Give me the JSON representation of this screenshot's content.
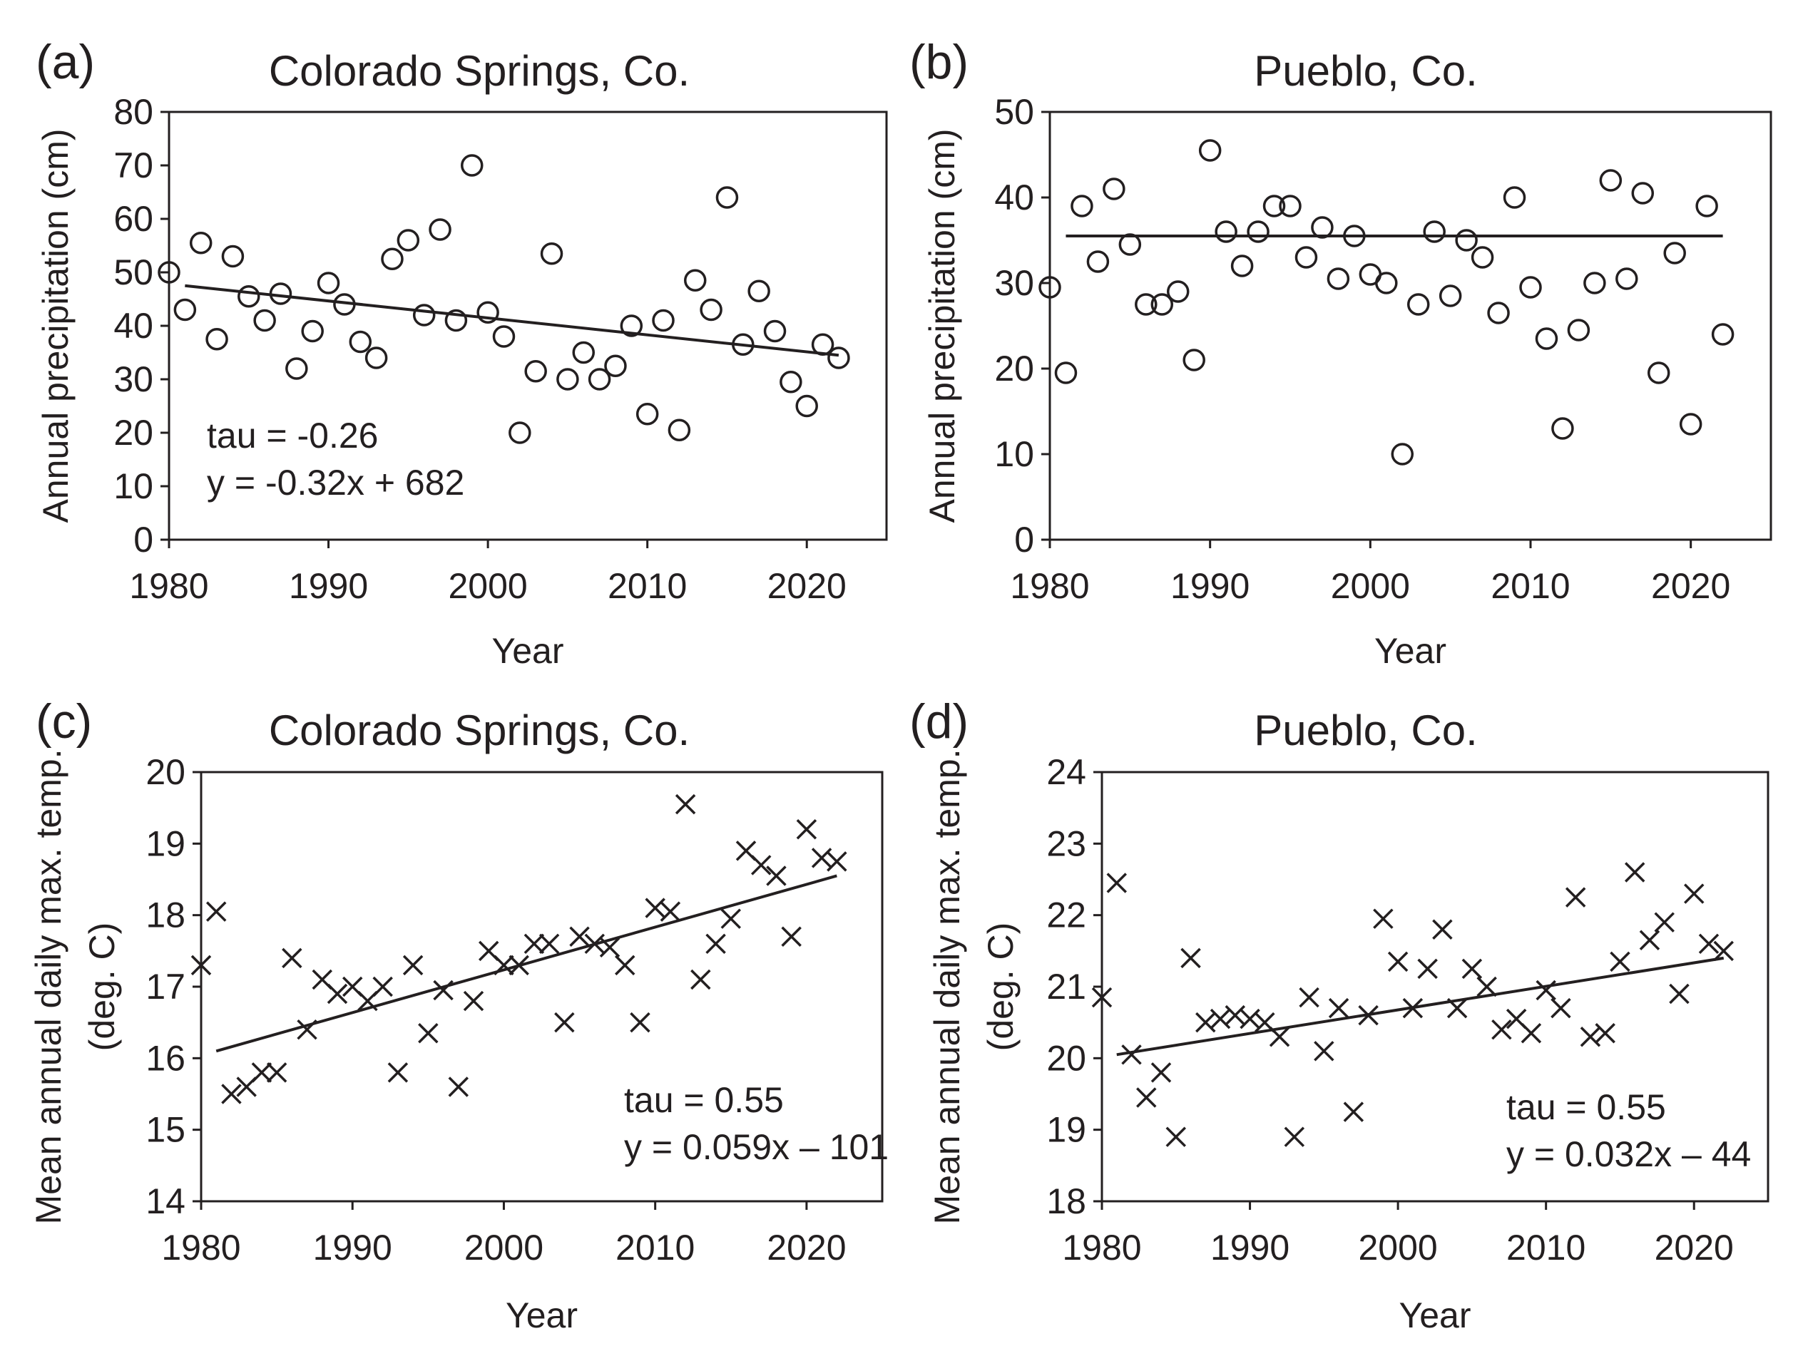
{
  "chart_data": [
    {
      "id": "a",
      "type": "scatter",
      "panel_label": "(a)",
      "title": "Colorado Springs, Co.",
      "xlabel": "Year",
      "ylabel": "Annual precipitation (cm)",
      "xlim": [
        1980,
        2025
      ],
      "ylim": [
        0,
        80
      ],
      "xticks": [
        1980,
        1990,
        2000,
        2010,
        2020
      ],
      "yticks": [
        0,
        10,
        20,
        30,
        40,
        50,
        60,
        70,
        80
      ],
      "marker": "circle",
      "x": [
        1980,
        1981,
        1982,
        1983,
        1984,
        1985,
        1986,
        1987,
        1988,
        1989,
        1990,
        1991,
        1992,
        1993,
        1994,
        1995,
        1996,
        1997,
        1998,
        1999,
        2000,
        2001,
        2002,
        2003,
        2004,
        2005,
        2006,
        2007,
        2008,
        2009,
        2010,
        2011,
        2012,
        2013,
        2014,
        2015,
        2016,
        2017,
        2018,
        2019,
        2020,
        2021,
        2022
      ],
      "y": [
        50,
        43,
        55.5,
        37.5,
        53,
        45.5,
        41,
        46,
        32,
        39,
        48,
        44,
        37,
        34,
        52.5,
        56,
        42,
        58,
        41,
        70,
        42.5,
        38,
        20,
        31.5,
        53.5,
        30,
        35,
        30,
        32.5,
        40,
        23.5,
        41,
        20.5,
        48.5,
        43,
        64,
        36.5,
        46.5,
        39,
        29.5,
        25,
        36.5,
        34
      ],
      "trendline": {
        "x": [
          1981,
          2022
        ],
        "y": [
          47.5,
          34.5
        ]
      },
      "annotations": [
        "tau = -0.26",
        "y = -0.32x + 682"
      ]
    },
    {
      "id": "b",
      "type": "scatter",
      "panel_label": "(b)",
      "title": "Pueblo, Co.",
      "xlabel": "Year",
      "ylabel": "Annual precipitation (cm)",
      "xlim": [
        1980,
        2025
      ],
      "ylim": [
        0,
        50
      ],
      "xticks": [
        1980,
        1990,
        2000,
        2010,
        2020
      ],
      "yticks": [
        0,
        10,
        20,
        30,
        40,
        50
      ],
      "marker": "circle",
      "x": [
        1980,
        1981,
        1982,
        1983,
        1984,
        1985,
        1986,
        1987,
        1988,
        1989,
        1990,
        1991,
        1992,
        1993,
        1994,
        1995,
        1996,
        1997,
        1998,
        1999,
        2000,
        2001,
        2002,
        2003,
        2004,
        2005,
        2006,
        2007,
        2008,
        2009,
        2010,
        2011,
        2012,
        2013,
        2014,
        2015,
        2016,
        2017,
        2018,
        2019,
        2020,
        2021,
        2022
      ],
      "y": [
        29.5,
        19.5,
        39,
        32.5,
        41,
        34.5,
        27.5,
        27.5,
        29,
        21,
        45.5,
        36,
        32,
        36,
        39,
        39,
        33,
        36.5,
        30.5,
        35.5,
        31,
        30,
        10,
        27.5,
        36,
        28.5,
        35,
        33,
        26.5,
        40,
        29.5,
        23.5,
        13,
        24.5,
        30,
        42,
        30.5,
        40.5,
        19.5,
        33.5,
        13.5,
        39,
        24
      ],
      "trendline": {
        "x": [
          1981,
          2022
        ],
        "y": [
          35.5,
          35.5
        ]
      },
      "annotations": []
    },
    {
      "id": "c",
      "type": "scatter",
      "panel_label": "(c)",
      "title": "Colorado Springs, Co.",
      "xlabel": "Year",
      "ylabel": [
        "Mean annual daily max. temp.",
        "(deg. C)"
      ],
      "xlim": [
        1980,
        2025
      ],
      "ylim": [
        14,
        20
      ],
      "xticks": [
        1980,
        1990,
        2000,
        2010,
        2020
      ],
      "yticks": [
        14,
        15,
        16,
        17,
        18,
        19,
        20
      ],
      "marker": "cross",
      "x": [
        1980,
        1981,
        1982,
        1983,
        1984,
        1985,
        1986,
        1987,
        1988,
        1989,
        1990,
        1991,
        1992,
        1993,
        1994,
        1995,
        1996,
        1997,
        1998,
        1999,
        2000,
        2001,
        2002,
        2003,
        2004,
        2005,
        2006,
        2007,
        2008,
        2009,
        2010,
        2011,
        2012,
        2013,
        2014,
        2015,
        2016,
        2017,
        2018,
        2019,
        2020,
        2021,
        2022
      ],
      "y": [
        17.3,
        18.05,
        15.5,
        15.6,
        15.8,
        15.8,
        17.4,
        16.4,
        17.1,
        16.9,
        17,
        16.8,
        17,
        15.8,
        17.3,
        16.35,
        16.95,
        15.6,
        16.8,
        17.5,
        17.3,
        17.3,
        17.6,
        17.6,
        16.5,
        17.7,
        17.6,
        17.55,
        17.3,
        16.5,
        18.1,
        18.05,
        19.55,
        17.1,
        17.6,
        17.95,
        18.9,
        18.7,
        18.55,
        17.7,
        19.2,
        18.8,
        18.75
      ],
      "trendline": {
        "x": [
          1981,
          2022
        ],
        "y": [
          16.1,
          18.55
        ]
      },
      "annotations": [
        "tau = 0.55",
        "y = 0.059x – 101"
      ]
    },
    {
      "id": "d",
      "type": "scatter",
      "panel_label": "(d)",
      "title": "Pueblo, Co.",
      "xlabel": "Year",
      "ylabel": [
        "Mean annual daily max. temp.",
        "(deg. C)"
      ],
      "xlim": [
        1980,
        2025
      ],
      "ylim": [
        18,
        24
      ],
      "xticks": [
        1980,
        1990,
        2000,
        2010,
        2020
      ],
      "yticks": [
        18,
        19,
        20,
        21,
        22,
        23,
        24
      ],
      "marker": "cross",
      "x": [
        1980,
        1981,
        1982,
        1983,
        1984,
        1985,
        1986,
        1987,
        1988,
        1989,
        1990,
        1991,
        1992,
        1993,
        1994,
        1995,
        1996,
        1997,
        1998,
        1999,
        2000,
        2001,
        2002,
        2003,
        2004,
        2005,
        2006,
        2007,
        2008,
        2009,
        2010,
        2011,
        2012,
        2013,
        2014,
        2015,
        2016,
        2017,
        2018,
        2019,
        2020,
        2021,
        2022
      ],
      "y": [
        20.85,
        22.45,
        20.05,
        19.45,
        19.8,
        18.9,
        21.4,
        20.5,
        20.55,
        20.6,
        20.55,
        20.5,
        20.3,
        18.9,
        20.85,
        20.1,
        20.7,
        19.25,
        20.6,
        21.95,
        21.35,
        20.7,
        21.25,
        21.8,
        20.7,
        21.25,
        21,
        20.4,
        20.55,
        20.35,
        20.95,
        20.7,
        22.25,
        20.3,
        20.35,
        21.35,
        22.6,
        21.65,
        21.9,
        20.9,
        22.3,
        21.6,
        21.5
      ],
      "trendline": {
        "x": [
          1981,
          2022
        ],
        "y": [
          20.05,
          21.4
        ]
      },
      "annotations": [
        "tau = 0.55",
        "y = 0.032x – 44"
      ]
    }
  ]
}
